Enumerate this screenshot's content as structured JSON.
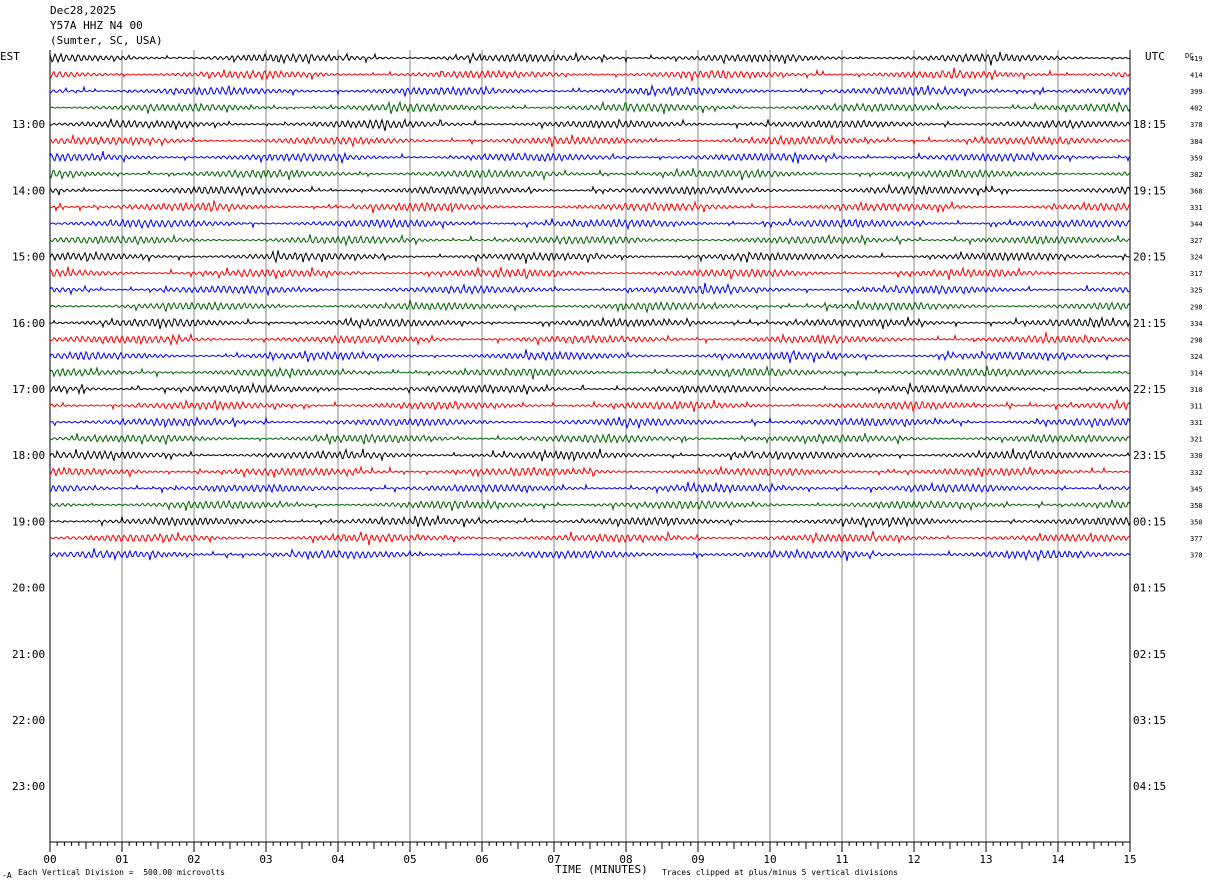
{
  "header": {
    "date": "Dec28,2025",
    "station": "Y57A HHZ N4 00",
    "location": "(Sumter, SC, USA)"
  },
  "left_zone": "EST",
  "right_zone": "UTC",
  "dc_label": "DC",
  "footer": {
    "scale_note": "Each Vertical Division =  500.00 microvolts",
    "clip_note": "Traces clipped at plus/minus 5 vertical divisions",
    "corner_mark": "-A"
  },
  "chart_data": {
    "type": "line",
    "title": "",
    "xlabel": "TIME (MINUTES)",
    "x_ticks": [
      "00",
      "01",
      "02",
      "03",
      "04",
      "05",
      "06",
      "07",
      "08",
      "09",
      "10",
      "11",
      "12",
      "13",
      "14",
      "15"
    ],
    "xlim": [
      0,
      15
    ],
    "left_hour_labels": [
      "13:00",
      "14:00",
      "15:00",
      "16:00",
      "17:00",
      "18:00",
      "19:00",
      "20:00",
      "21:00",
      "22:00",
      "23:00"
    ],
    "right_hour_labels": [
      "18:15",
      "19:15",
      "20:15",
      "21:15",
      "22:15",
      "23:15",
      "00:15",
      "01:15",
      "02:15",
      "03:15",
      "04:15"
    ],
    "trace_colors": [
      "#000000",
      "#ff0000",
      "#0000ff",
      "#006400"
    ],
    "dc_offsets": [
      419,
      414,
      399,
      402,
      378,
      384,
      359,
      382,
      368,
      331,
      344,
      327,
      324,
      317,
      325,
      298,
      334,
      298,
      324,
      314,
      310,
      311,
      331,
      321,
      330,
      332,
      345,
      358,
      350,
      377,
      378
    ]
  }
}
